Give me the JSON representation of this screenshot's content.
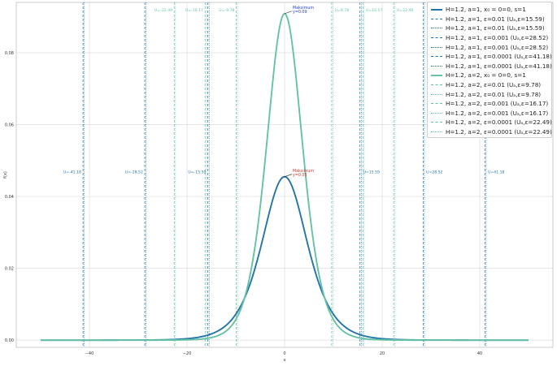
{
  "colors": {
    "a1": "#2574a9",
    "a2": "#66c2a5",
    "max_label_a1": "#c0392b",
    "max_label_a2": "#1f3fbf",
    "grid": "#dddddd"
  },
  "chart_data": {
    "type": "line",
    "title": "",
    "xlabel": "x",
    "ylabel": "f(x)",
    "xlim": [
      -55,
      55
    ],
    "ylim": [
      -0.002,
      0.094
    ],
    "x_ticks": [
      -40,
      -20,
      0,
      20,
      40
    ],
    "x_tick_labels": [
      "−40",
      "−20",
      "0",
      "20",
      "40"
    ],
    "y_ticks": [
      0.0,
      0.02,
      0.04,
      0.06,
      0.08
    ],
    "y_tick_labels": [
      "0.00",
      "0.02",
      "0.04",
      "0.06",
      "0.08"
    ],
    "grid": true,
    "legend_position": "top-right",
    "series": [
      {
        "name": "H=1.2, a=1, x₀ = 0=0, s=1",
        "a": 1,
        "x0": 0,
        "peak": 0.0455,
        "scale": 5.5
      },
      {
        "name": "H=1.2, a=2, x₀ = 0=0, s=1",
        "a": 2,
        "x0": 0,
        "peak": 0.0909,
        "scale": 5.5
      }
    ],
    "thresholds": [
      {
        "a": 1,
        "eps": "0.01",
        "value": 15.59,
        "labels": [
          "U=-15.59",
          "U=15.59"
        ]
      },
      {
        "a": 1,
        "eps": "0.001",
        "value": 28.52,
        "labels": [
          "U=-28.52",
          "U=28.52"
        ]
      },
      {
        "a": 1,
        "eps": "0.0001",
        "value": 41.18,
        "labels": [
          "U=-41.18",
          "U=41.18"
        ]
      },
      {
        "a": 2,
        "eps": "0.01",
        "value": 9.78,
        "labels": [
          "U=-9.78",
          "U=9.78"
        ]
      },
      {
        "a": 2,
        "eps": "0.001",
        "value": 16.17,
        "labels": [
          "U=-16.17",
          "U=16.17"
        ]
      },
      {
        "a": 2,
        "eps": "0.0001",
        "value": 22.49,
        "labels": [
          "U=-22.49",
          "U=22.49"
        ]
      }
    ],
    "annotations": [
      {
        "text": [
          "Maksimum",
          "y=0.05"
        ],
        "x": 0,
        "y": 0.0455,
        "series": 0
      },
      {
        "text": [
          "Maksimum",
          "y=0.09"
        ],
        "x": 0,
        "y": 0.0909,
        "series": 1
      }
    ],
    "legend": [
      {
        "label": "H=1.2, a=1, x₀ = 0=0, s=1",
        "style": "solid",
        "series": 0
      },
      {
        "label": "H=1.2, a=1, ε=0.01 (Uₐ,ε=15.59)",
        "style": "dashed",
        "series": 0
      },
      {
        "label": "H=1.2, a=1, ε=0.01 (Uₐ,ε=15.59)",
        "style": "dotted",
        "series": 0
      },
      {
        "label": "H=1.2, a=1, ε=0.001 (Uₐ,ε=28.52)",
        "style": "dashed",
        "series": 0
      },
      {
        "label": "H=1.2, a=1, ε=0.001 (Uₐ,ε=28.52)",
        "style": "dotted",
        "series": 0
      },
      {
        "label": "H=1.2, a=1, ε=0.0001 (Uₐ,ε=41.18)",
        "style": "dashed",
        "series": 0
      },
      {
        "label": "H=1.2, a=1, ε=0.0001 (Uₐ,ε=41.18)",
        "style": "dotted",
        "series": 0
      },
      {
        "label": "H=1.2, a=2, x₀ = 0=0, s=1",
        "style": "solid",
        "series": 1
      },
      {
        "label": "H=1.2, a=2, ε=0.01 (Uₐ,ε=9.78)",
        "style": "dashed",
        "series": 1
      },
      {
        "label": "H=1.2, a=2, ε=0.01 (Uₐ,ε=9.78)",
        "style": "dotted",
        "series": 1
      },
      {
        "label": "H=1.2, a=2, ε=0.001 (Uₐ,ε=16.17)",
        "style": "dashed",
        "series": 1
      },
      {
        "label": "H=1.2, a=2, ε=0.001 (Uₐ,ε=16.17)",
        "style": "dotted",
        "series": 1
      },
      {
        "label": "H=1.2, a=2, ε=0.0001 (Uₐ,ε=22.49)",
        "style": "dashed",
        "series": 1
      },
      {
        "label": "H=1.2, a=2, ε=0.0001 (Uₐ,ε=22.49)",
        "style": "dotted",
        "series": 1
      }
    ]
  }
}
